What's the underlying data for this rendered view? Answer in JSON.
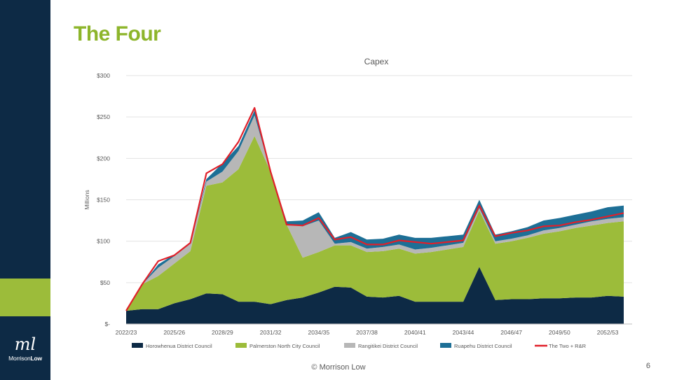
{
  "slide": {
    "title": "The Four",
    "footer": "© Morrison Low",
    "page_number": "6",
    "logo_mark": "ml",
    "logo_text_regular": "Morrison",
    "logo_text_bold": "Low",
    "colors": {
      "sidebar": "#0d2a45",
      "accent": "#9cbc3a",
      "title": "#8db52b"
    }
  },
  "chart_data": {
    "type": "area",
    "title": "Capex",
    "ylabel": "Millions",
    "xlabel": "",
    "ylim": [
      0,
      300
    ],
    "yticks": [
      0,
      50,
      100,
      150,
      200,
      250,
      300
    ],
    "ytick_labels": [
      "$-",
      "$50",
      "$100",
      "$150",
      "$200",
      "$250",
      "$300"
    ],
    "x": [
      "2022/23",
      "2023/24",
      "2024/25",
      "2025/26",
      "2026/27",
      "2027/28",
      "2028/29",
      "2029/30",
      "2030/31",
      "2031/32",
      "2032/33",
      "2033/34",
      "2034/35",
      "2035/36",
      "2036/37",
      "2037/38",
      "2038/39",
      "2039/40",
      "2040/41",
      "2041/42",
      "2042/43",
      "2043/44",
      "2044/45",
      "2045/46",
      "2046/47",
      "2047/48",
      "2048/49",
      "2049/50",
      "2050/51",
      "2051/52",
      "2052/53",
      "2053/54"
    ],
    "xtick_labels": [
      "2022/23",
      "2025/26",
      "2028/29",
      "2031/32",
      "2034/35",
      "2037/38",
      "2040/41",
      "2043/44",
      "2046/47",
      "2049/50",
      "2052/53"
    ],
    "stacked": true,
    "grid": true,
    "legend_position": "bottom",
    "series": [
      {
        "name": "Horowhenua District Council",
        "color": "#0d2a45",
        "values": [
          16,
          18,
          18,
          25,
          30,
          37,
          36,
          27,
          27,
          24,
          29,
          32,
          38,
          45,
          44,
          33,
          32,
          34,
          27,
          27,
          27,
          27,
          69,
          29,
          30,
          30,
          31,
          31,
          32,
          32,
          34,
          33
        ]
      },
      {
        "name": "Palmerston North City Council",
        "color": "#9cbc3a",
        "values": [
          0,
          30,
          40,
          48,
          58,
          130,
          135,
          160,
          200,
          160,
          91,
          48,
          49,
          50,
          51,
          54,
          56,
          57,
          58,
          60,
          63,
          66,
          68,
          68,
          70,
          74,
          78,
          81,
          84,
          87,
          88,
          91
        ]
      },
      {
        "name": "Rangitikei District Council",
        "color": "#b7b7b7",
        "values": [
          0,
          0,
          10,
          9,
          9,
          5,
          13,
          22,
          25,
          0,
          0,
          38,
          38,
          2,
          4,
          4,
          5,
          5,
          5,
          5,
          5,
          5,
          3,
          3,
          3,
          3,
          4,
          4,
          4,
          5,
          5,
          5
        ]
      },
      {
        "name": "Ruapehu District Council",
        "color": "#1d6f96",
        "values": [
          0,
          0,
          4,
          2,
          0,
          3,
          10,
          6,
          6,
          0,
          4,
          7,
          10,
          7,
          12,
          11,
          10,
          12,
          14,
          12,
          11,
          10,
          10,
          8,
          9,
          10,
          12,
          12,
          12,
          12,
          14,
          14
        ]
      }
    ],
    "line_series": {
      "name": "The Two + R&R",
      "color": "#e0202a",
      "values": [
        16,
        48,
        76,
        83,
        98,
        182,
        193,
        220,
        261,
        184,
        120,
        119,
        128,
        102,
        105,
        96,
        96,
        101,
        99,
        97,
        99,
        101,
        143,
        106,
        110,
        113,
        118,
        119,
        123,
        126,
        130,
        134
      ]
    }
  }
}
